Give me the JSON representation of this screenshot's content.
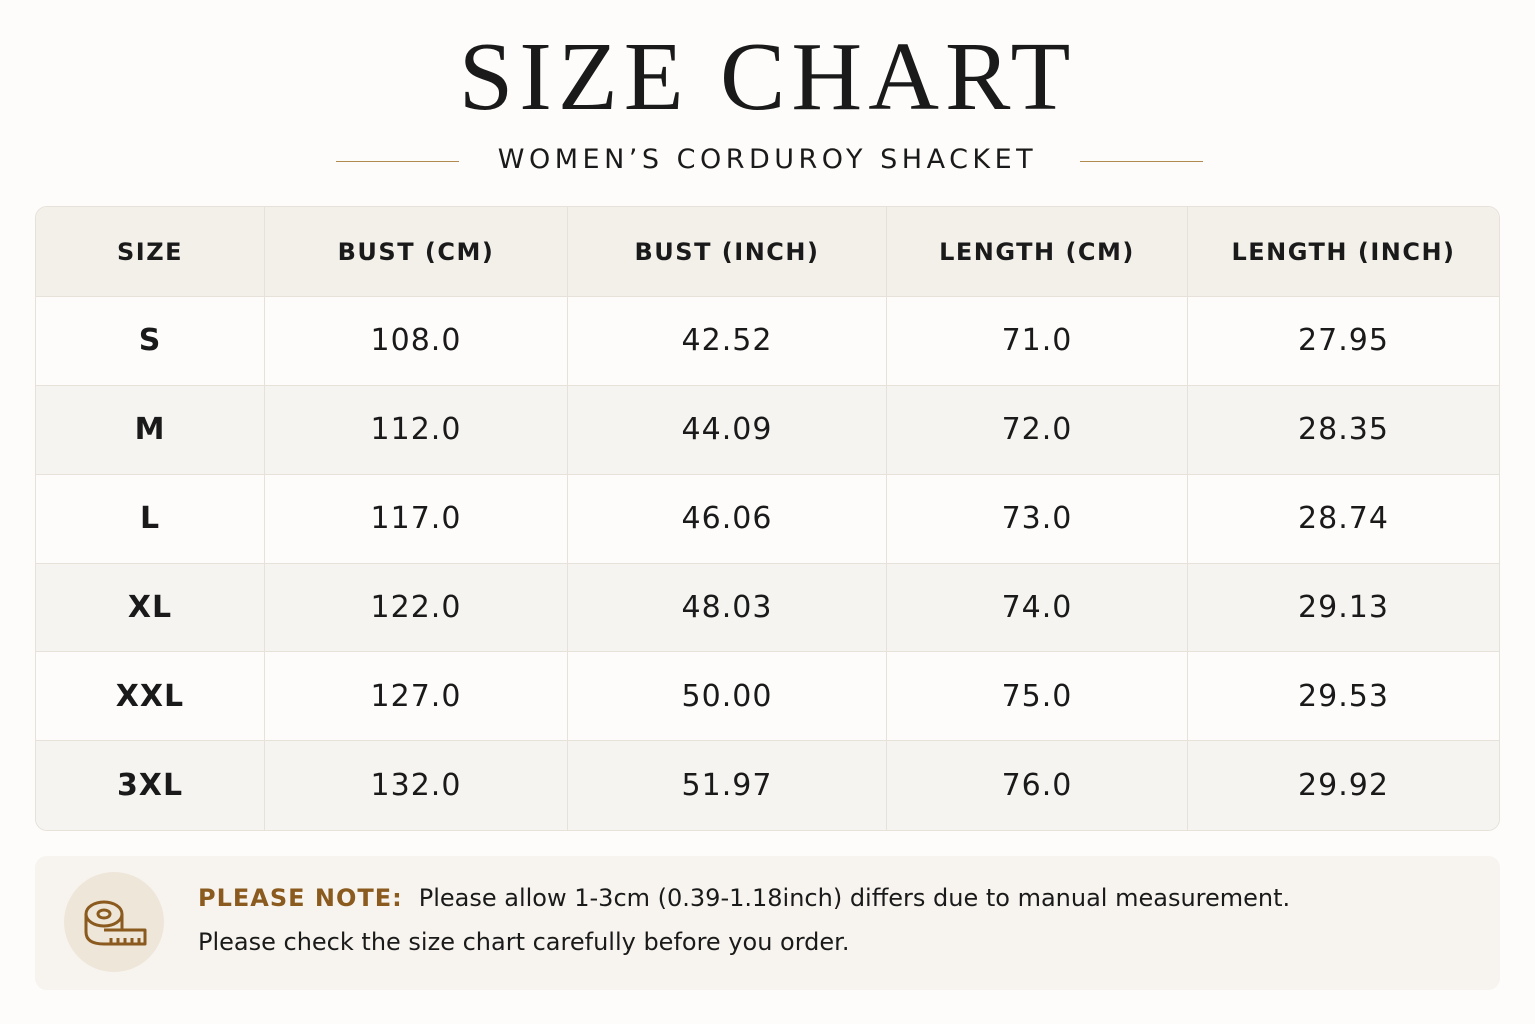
{
  "header": {
    "title": "SIZE CHART",
    "subtitle": "WOMEN’S CORDUROY SHACKET"
  },
  "table": {
    "columns": [
      "SIZE",
      "BUST (CM)",
      "BUST (INCH)",
      "LENGTH (CM)",
      "LENGTH (INCH)"
    ],
    "rows": [
      [
        "S",
        "108.0",
        "42.52",
        "71.0",
        "27.95"
      ],
      [
        "M",
        "112.0",
        "44.09",
        "72.0",
        "28.35"
      ],
      [
        "L",
        "117.0",
        "46.06",
        "73.0",
        "28.74"
      ],
      [
        "XL",
        "122.0",
        "48.03",
        "74.0",
        "29.13"
      ],
      [
        "XXL",
        "127.0",
        "50.00",
        "75.0",
        "29.53"
      ],
      [
        "3XL",
        "132.0",
        "51.97",
        "76.0",
        "29.92"
      ]
    ]
  },
  "note": {
    "label": "PLEASE NOTE:",
    "lines": [
      "Please allow 1-3cm (0.39-1.18inch) differs due to manual measurement.",
      "Please check the size chart carefully before you order."
    ]
  }
}
